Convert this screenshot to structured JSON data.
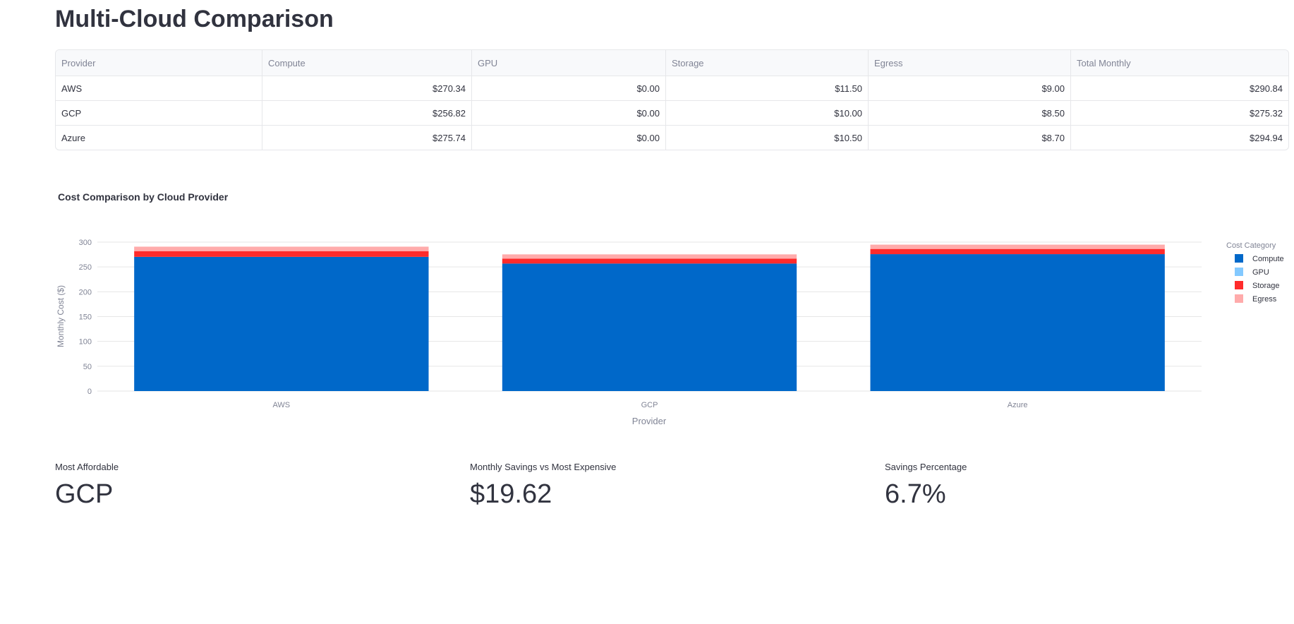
{
  "title": "Multi-Cloud Comparison",
  "table": {
    "headers": [
      "Provider",
      "Compute",
      "GPU",
      "Storage",
      "Egress",
      "Total Monthly"
    ],
    "rows": [
      [
        "AWS",
        "$270.34",
        "$0.00",
        "$11.50",
        "$9.00",
        "$290.84"
      ],
      [
        "GCP",
        "$256.82",
        "$0.00",
        "$10.00",
        "$8.50",
        "$275.32"
      ],
      [
        "Azure",
        "$275.74",
        "$0.00",
        "$10.50",
        "$8.70",
        "$294.94"
      ]
    ]
  },
  "chart_data": {
    "type": "bar",
    "stacked": true,
    "title": "Cost Comparison by Cloud Provider",
    "xlabel": "Provider",
    "ylabel": "Monthly Cost ($)",
    "categories": [
      "AWS",
      "GCP",
      "Azure"
    ],
    "ylim": [
      0,
      305
    ],
    "yticks": [
      0,
      50,
      100,
      150,
      200,
      250,
      300
    ],
    "legend_title": "Cost Category",
    "legend_position": "right",
    "grid": true,
    "series": [
      {
        "name": "Compute",
        "color": "#0068c9",
        "values": [
          270.34,
          256.82,
          275.74
        ]
      },
      {
        "name": "GPU",
        "color": "#83c9ff",
        "values": [
          0,
          0,
          0
        ]
      },
      {
        "name": "Storage",
        "color": "#ff2b2b",
        "values": [
          11.5,
          10.0,
          10.5
        ]
      },
      {
        "name": "Egress",
        "color": "#ffabab",
        "values": [
          9.0,
          8.5,
          8.7
        ]
      }
    ]
  },
  "metrics": [
    {
      "label": "Most Affordable",
      "value": "GCP"
    },
    {
      "label": "Monthly Savings vs Most Expensive",
      "value": "$19.62"
    },
    {
      "label": "Savings Percentage",
      "value": "6.7%"
    }
  ]
}
